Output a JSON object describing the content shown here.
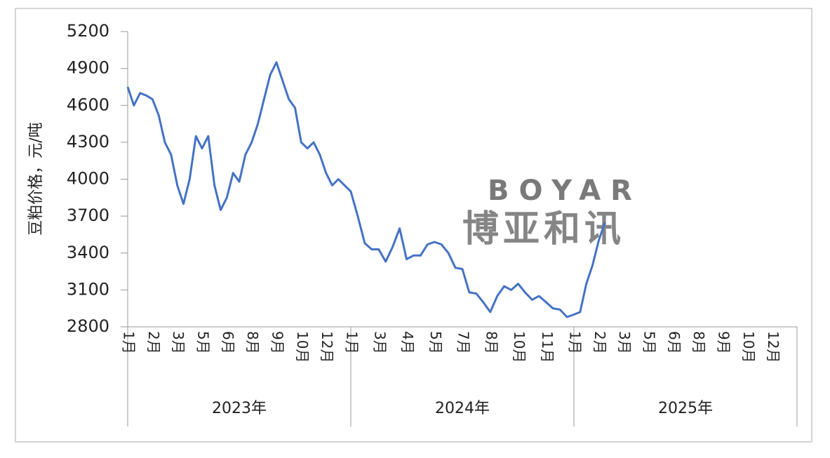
{
  "chart_data": {
    "type": "line",
    "y_label": "豆粕价格，元/吨",
    "color": "#4472c4",
    "ylim": [
      2800,
      5200
    ],
    "yticks": [
      2800,
      3100,
      3400,
      3700,
      4000,
      4300,
      4600,
      4900,
      5200
    ],
    "grid": false,
    "watermark": [
      "BOYAR",
      "博亚和讯"
    ],
    "groups": [
      {
        "label": "2023年",
        "categories": [
          "1月",
          null,
          null,
          null,
          "2月",
          null,
          null,
          null,
          "3月",
          null,
          null,
          null,
          "5月",
          null,
          null,
          null,
          "6月",
          null,
          null,
          null,
          "8月",
          null,
          null,
          null,
          "9月",
          null,
          null,
          null,
          "10月",
          null,
          null,
          null,
          "12月",
          null,
          null,
          null
        ],
        "values": [
          4750,
          4600,
          4700,
          4680,
          4650,
          4520,
          4300,
          4200,
          3950,
          3800,
          4000,
          4350,
          4250,
          4350,
          3950,
          3750,
          3850,
          4050,
          3980,
          4200,
          4300,
          4450,
          4650,
          4850,
          4950,
          4800,
          4650,
          4580,
          4300,
          4250,
          4300,
          4200,
          4050,
          3950,
          4000,
          3950
        ]
      },
      {
        "label": "2024年",
        "categories": [
          "1月",
          null,
          null,
          null,
          "3月",
          null,
          null,
          null,
          "4月",
          null,
          null,
          null,
          "5月",
          null,
          null,
          null,
          "7月",
          null,
          null,
          null,
          "8月",
          null,
          null,
          null,
          "10月",
          null,
          null,
          null,
          "11月",
          null,
          null,
          null
        ],
        "values": [
          3900,
          3700,
          3480,
          3430,
          3430,
          3330,
          3450,
          3600,
          3350,
          3380,
          3380,
          3470,
          3490,
          3470,
          3400,
          3280,
          3270,
          3080,
          3070,
          3000,
          2920,
          3050,
          3130,
          3100,
          3150,
          3080,
          3020,
          3050,
          3000,
          2950,
          2940,
          2880
        ]
      },
      {
        "label": "2025年",
        "categories": [
          "1月",
          null,
          null,
          null,
          "2月",
          null,
          null,
          null,
          "3月",
          null,
          null,
          null,
          "5月",
          null,
          null,
          null,
          "6月",
          null,
          null,
          null,
          "8月",
          null,
          null,
          null,
          "9月",
          null,
          null,
          null,
          "10月",
          null,
          null,
          null,
          "12月",
          null,
          null,
          null
        ],
        "values": [
          2900,
          2920,
          3150,
          3300,
          3500,
          3650,
          null,
          null,
          null,
          null,
          null,
          null,
          null,
          null,
          null,
          null,
          null,
          null,
          null,
          null,
          null,
          null,
          null,
          null,
          null,
          null,
          null,
          null,
          null,
          null,
          null,
          null,
          null,
          null,
          null,
          null
        ]
      }
    ]
  }
}
